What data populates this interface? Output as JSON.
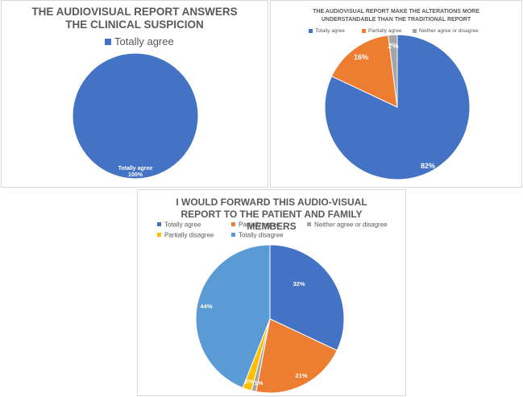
{
  "colors": {
    "totally_agree": "#4472c4",
    "partially_agree": "#ed7d31",
    "neither": "#a5a5a5",
    "partially_disagree": "#ffc000",
    "totally_disagree": "#5b9bd5"
  },
  "chart_data": [
    {
      "type": "pie",
      "title": "THE AUDIOVISUAL REPORT ANSWERS THE CLINICAL SUSPICION",
      "legend": [
        "Totally agree"
      ],
      "legend_placement": "top",
      "slices": [
        {
          "label": "Totally agree",
          "value": 100,
          "data_label": "Totally agree\n100%",
          "color": "#4472c4"
        }
      ]
    },
    {
      "type": "pie",
      "title": "THE AUDIOVISUAL REPORT MAKE THE ALTERATIONS MORE UNDERSTANDABLE THAN THE TRADITIONAL REPORT",
      "legend": [
        "Totally agree",
        "Partially agree",
        "Neither agree or disagree"
      ],
      "legend_placement": "top",
      "slices": [
        {
          "label": "Totally agree",
          "value": 82,
          "data_label": "82%",
          "color": "#4472c4"
        },
        {
          "label": "Partially agree",
          "value": 16,
          "data_label": "16%",
          "color": "#ed7d31"
        },
        {
          "label": "Neither agree or disagree",
          "value": 2,
          "data_label": "2%",
          "color": "#a5a5a5"
        }
      ]
    },
    {
      "type": "pie",
      "title": "I WOULD FORWARD THIS AUDIO-VISUAL REPORT TO THE PATIENT AND FAMILY MEMBERS",
      "legend": [
        "Totally agree",
        "Partially agree",
        "Neither agree or disagree",
        "Partially disagree",
        "Totally disagree"
      ],
      "legend_placement": "top",
      "slices": [
        {
          "label": "Totally agree",
          "value": 32,
          "data_label": "32%",
          "color": "#4472c4"
        },
        {
          "label": "Partially agree",
          "value": 21,
          "data_label": "21%",
          "color": "#ed7d31"
        },
        {
          "label": "Neither agree or disagree",
          "value": 1,
          "data_label": "1%",
          "color": "#a5a5a5"
        },
        {
          "label": "Partially disagree",
          "value": 2,
          "data_label": "2%",
          "color": "#ffc000"
        },
        {
          "label": "Totally disagree",
          "value": 44,
          "data_label": "44%",
          "color": "#5b9bd5"
        }
      ]
    }
  ]
}
